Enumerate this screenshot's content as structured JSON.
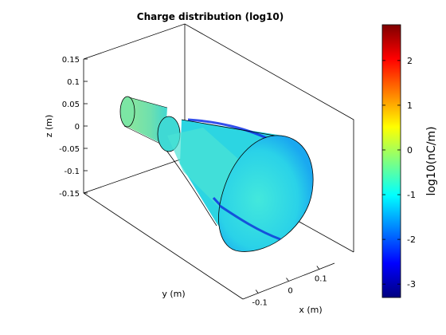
{
  "chart_data": {
    "type": "surface3d",
    "title": "Charge distribution (log10)",
    "xlabel": "x (m)",
    "ylabel": "y (m)",
    "zlabel": "z (m)",
    "x_ticks": [
      -0.1,
      0,
      0.1
    ],
    "x_tick_labels": [
      "-0.1",
      "0",
      "0.1"
    ],
    "z_ticks": [
      0.15,
      0.1,
      0.05,
      0,
      -0.05,
      -0.1,
      -0.15
    ],
    "z_tick_labels": [
      "0.15",
      "0.1",
      "0.05",
      "0",
      "-0.05",
      "-0.1",
      "-0.15"
    ],
    "zlim": [
      -0.15,
      0.15
    ],
    "colormap": "jet",
    "colorbar": {
      "label": "log10(nC/m)",
      "ticks": [
        2,
        1,
        0,
        -1,
        -2,
        -3
      ],
      "tick_labels": [
        "2",
        "1",
        "0",
        "-1",
        "-2",
        "-3"
      ],
      "range": [
        -3.3,
        2.8
      ]
    },
    "surface": {
      "shape": "small cylinder joined to a frustum (cone) opening toward +x",
      "predominant_value": -0.8,
      "minimum_value": -3.0
    }
  },
  "colors": {
    "surface_main": "#2fd6e3",
    "surface_light": "#4de5d7",
    "surface_small_end": "#7ee5a3",
    "low_charge_stripe": "#1030e8",
    "axis": "#000000"
  }
}
